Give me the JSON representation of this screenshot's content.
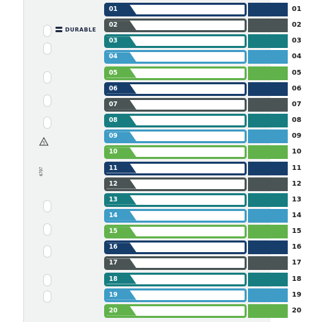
{
  "brand": {
    "name": "DURABLE"
  },
  "product_code": "6797",
  "recycle_symbol": {
    "icon": "recycle-icon",
    "number": "5"
  },
  "palette": {
    "navy": "#173d6b",
    "slate": "#4a5455",
    "teal": "#177d80",
    "sky": "#3e9cc7",
    "green": "#61b24a"
  },
  "tabs": [
    {
      "label": "01",
      "color": "#173d6b"
    },
    {
      "label": "02",
      "color": "#4a5455"
    },
    {
      "label": "03",
      "color": "#177d80"
    },
    {
      "label": "04",
      "color": "#3e9cc7"
    },
    {
      "label": "05",
      "color": "#61b24a"
    },
    {
      "label": "06",
      "color": "#173d6b"
    },
    {
      "label": "07",
      "color": "#4a5455"
    },
    {
      "label": "08",
      "color": "#177d80"
    },
    {
      "label": "09",
      "color": "#3e9cc7"
    },
    {
      "label": "10",
      "color": "#61b24a"
    },
    {
      "label": "11",
      "color": "#173d6b"
    },
    {
      "label": "12",
      "color": "#4a5455"
    },
    {
      "label": "13",
      "color": "#177d80"
    },
    {
      "label": "14",
      "color": "#3e9cc7"
    },
    {
      "label": "15",
      "color": "#61b24a"
    },
    {
      "label": "16",
      "color": "#173d6b"
    },
    {
      "label": "17",
      "color": "#4a5455"
    },
    {
      "label": "18",
      "color": "#177d80"
    },
    {
      "label": "19",
      "color": "#3e9cc7"
    },
    {
      "label": "20",
      "color": "#61b24a"
    }
  ]
}
